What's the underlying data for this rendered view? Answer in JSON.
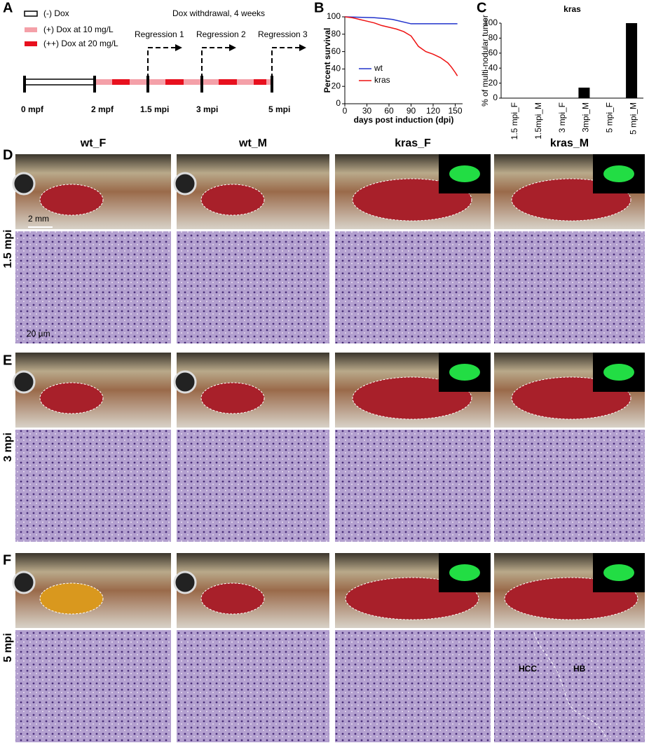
{
  "panel_labels": [
    "A",
    "B",
    "C",
    "D",
    "E",
    "F"
  ],
  "panel_a": {
    "legend": [
      "(-) Dox",
      "(+) Dox at 10 mg/L",
      "(++) Dox at 20 mg/L"
    ],
    "header": "Dox withdrawal, 4 weeks",
    "regressions": [
      "Regression 1",
      "Regression 2",
      "Regression 3"
    ],
    "timeline_labels": [
      "0 mpf",
      "2 mpf",
      "1.5 mpi",
      "3 mpi",
      "5 mpi"
    ]
  },
  "chart_data": [
    {
      "type": "line",
      "ylabel": "Percent survival",
      "xlabel": "days post induction (dpi)",
      "xlim": [
        0,
        160
      ],
      "xticks": [
        0,
        30,
        60,
        90,
        120,
        150
      ],
      "ylim": [
        0,
        100
      ],
      "yticks": [
        0,
        20,
        40,
        60,
        80,
        100
      ],
      "series": [
        {
          "name": "wt",
          "color": "#2233cc",
          "x": [
            0,
            40,
            55,
            65,
            90,
            153
          ],
          "values": [
            100,
            99,
            98,
            97,
            92,
            92
          ]
        },
        {
          "name": "kras",
          "color": "#ee1111",
          "x": [
            0,
            10,
            20,
            30,
            40,
            50,
            60,
            70,
            80,
            90,
            95,
            100,
            110,
            120,
            130,
            140,
            145,
            150,
            153
          ],
          "values": [
            100,
            99,
            97,
            95,
            93,
            90,
            88,
            86,
            83,
            78,
            72,
            66,
            60,
            57,
            53,
            47,
            42,
            36,
            32
          ]
        }
      ]
    },
    {
      "type": "bar",
      "title": "kras",
      "ylabel": "% of multi-nodular tumor",
      "categories": [
        "1.5 mpi_F",
        "1.5mpi_M",
        "3 mpi_F",
        "3mpi_M",
        "5 mpi_F",
        "5 mpi_M"
      ],
      "values": [
        0,
        0,
        0,
        14,
        0,
        100
      ],
      "color": "#000000",
      "ylim": [
        0,
        100
      ],
      "yticks": [
        0,
        20,
        40,
        60,
        80,
        100
      ]
    }
  ],
  "columns": [
    "wt_F",
    "wt_M",
    "kras_F",
    "kras_M"
  ],
  "rows": [
    "1.5 mpi",
    "3 mpi",
    "5 mpi"
  ],
  "annotations": {
    "scale_mm": "2 mm",
    "scale_um": "20 µm",
    "hcc": "HCC",
    "hb": "HB"
  }
}
